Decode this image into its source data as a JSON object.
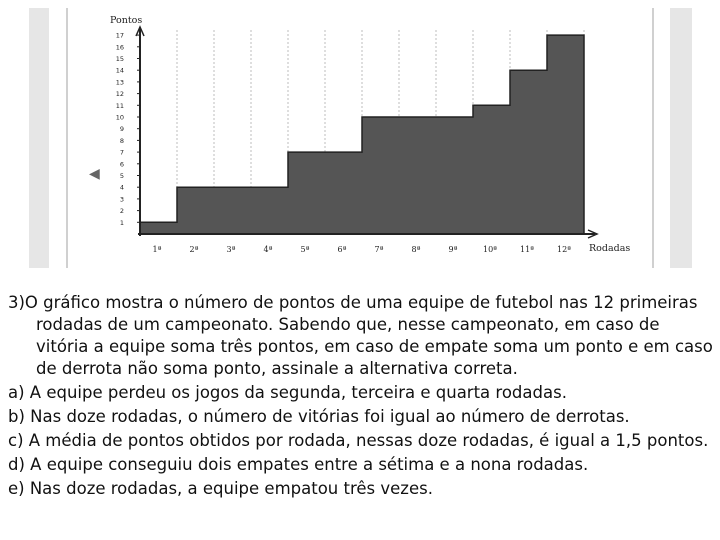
{
  "chart_data": {
    "type": "area",
    "ylabel": "Pontos",
    "xlabel": "Rodadas",
    "categories": [
      "1ª",
      "2ª",
      "3ª",
      "4ª",
      "5ª",
      "6ª",
      "7ª",
      "8ª",
      "9ª",
      "10ª",
      "11ª",
      "12ª"
    ],
    "values": [
      1,
      4,
      4,
      4,
      7,
      7,
      10,
      10,
      10,
      11,
      14,
      17
    ],
    "y_ticks": [
      "1",
      "2",
      "3",
      "4",
      "5",
      "6",
      "7",
      "8",
      "9",
      "10",
      "11",
      "12",
      "13",
      "14",
      "15",
      "16",
      "17"
    ],
    "ylim": [
      0,
      17
    ],
    "fill_color": "#555555",
    "grid": "vertical dashed lines at each round"
  },
  "question": {
    "stem": "3)O gráfico mostra o número de pontos de uma equipe de futebol nas 12 primeiras rodadas de um campeonato. Sabendo que, nesse campeonato, em caso de vitória a equipe soma três pontos, em caso de empate soma um ponto e em caso de derrota não soma ponto, assinale a alternativa correta.",
    "options": [
      "a) A equipe perdeu os jogos da segunda, terceira e quarta rodadas.",
      "b) Nas doze rodadas, o número de vitórias foi igual ao número de derrotas.",
      "c) A média de pontos obtidos por rodada, nessas doze rodadas, é igual a 1,5 pontos.",
      "d) A equipe conseguiu dois empates entre a sétima e a nona rodadas.",
      "e) Nas doze rodadas, a equipe empatou três vezes."
    ]
  }
}
